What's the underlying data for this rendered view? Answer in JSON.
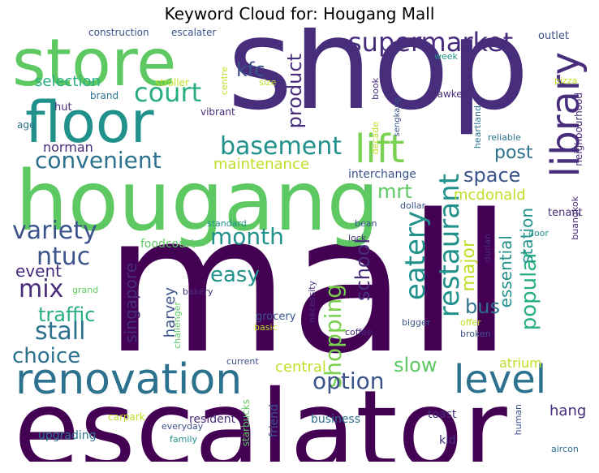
{
  "title": "Keyword Cloud for: Hougang Mall",
  "palette": {
    "purple_dark": "#440154",
    "purple": "#472d7b",
    "indigo": "#3b528b",
    "blue": "#2c728e",
    "teal": "#21918c",
    "green_teal": "#28ae80",
    "green": "#5ec962",
    "lime": "#addc30",
    "yellow": "#fde725"
  },
  "words": [
    {
      "text": "mall",
      "color": "#440154",
      "weight": 1.0
    },
    {
      "text": "shop",
      "color": "#472d7b",
      "weight": 0.68
    },
    {
      "text": "escalator",
      "color": "#440154",
      "weight": 0.62
    },
    {
      "text": "hougang",
      "color": "#5ec962",
      "weight": 0.55
    },
    {
      "text": "store",
      "color": "#5ec962",
      "weight": 0.5
    },
    {
      "text": "floor",
      "color": "#21918c",
      "weight": 0.45
    },
    {
      "text": "renovation",
      "color": "#2c728e",
      "weight": 0.3
    },
    {
      "text": "library",
      "color": "#472d7b",
      "weight": 0.28
    },
    {
      "text": "level",
      "color": "#2c728e",
      "weight": 0.26
    },
    {
      "text": "lift",
      "color": "#7ad151",
      "weight": 0.26
    },
    {
      "text": "supermarket",
      "color": "#472d7b",
      "weight": 0.22
    },
    {
      "text": "court",
      "color": "#28ae80",
      "weight": 0.2
    },
    {
      "text": "basement",
      "color": "#21918c",
      "weight": 0.2
    },
    {
      "text": "restaurant",
      "color": "#21918c",
      "weight": 0.2
    },
    {
      "text": "eatery",
      "color": "#21918c",
      "weight": 0.18
    },
    {
      "text": "convenient",
      "color": "#2c728e",
      "weight": 0.18
    },
    {
      "text": "variety",
      "color": "#3b528b",
      "weight": 0.18
    },
    {
      "text": "ntuc",
      "color": "#3b528b",
      "weight": 0.17
    },
    {
      "text": "mix",
      "color": "#472d7b",
      "weight": 0.17
    },
    {
      "text": "shopping",
      "color": "#7ad151",
      "weight": 0.17
    },
    {
      "text": "month",
      "color": "#21918c",
      "weight": 0.17
    },
    {
      "text": "stall",
      "color": "#2c728e",
      "weight": 0.17
    },
    {
      "text": "option",
      "color": "#3b528b",
      "weight": 0.16
    },
    {
      "text": "choice",
      "color": "#2c728e",
      "weight": 0.16
    },
    {
      "text": "easy",
      "color": "#21918c",
      "weight": 0.15
    },
    {
      "text": "popular",
      "color": "#28ae80",
      "weight": 0.15
    },
    {
      "text": "product",
      "color": "#472d7b",
      "weight": 0.14
    },
    {
      "text": "kfc",
      "color": "#3b528b",
      "weight": 0.14
    },
    {
      "text": "space",
      "color": "#3b528b",
      "weight": 0.14
    },
    {
      "text": "school",
      "color": "#472d7b",
      "weight": 0.14
    },
    {
      "text": "mrt",
      "color": "#5ec962",
      "weight": 0.14
    },
    {
      "text": "traffic",
      "color": "#28ae80",
      "weight": 0.14
    },
    {
      "text": "bus",
      "color": "#2c728e",
      "weight": 0.14
    },
    {
      "text": "slow",
      "color": "#5ec962",
      "weight": 0.14
    },
    {
      "text": "major",
      "color": "#bddf26",
      "weight": 0.13
    },
    {
      "text": "post",
      "color": "#2c728e",
      "weight": 0.13
    },
    {
      "text": "station",
      "color": "#21918c",
      "weight": 0.13
    },
    {
      "text": "essential",
      "color": "#21918c",
      "weight": 0.13
    },
    {
      "text": "singapore",
      "color": "#472d7b",
      "weight": 0.12
    },
    {
      "text": "event",
      "color": "#472d7b",
      "weight": 0.12
    },
    {
      "text": "harvey",
      "color": "#3b528b",
      "weight": 0.11
    },
    {
      "text": "central",
      "color": "#bddf26",
      "weight": 0.11
    },
    {
      "text": "maintenance",
      "color": "#bddf26",
      "weight": 0.1
    },
    {
      "text": "mcdonald",
      "color": "#bddf26",
      "weight": 0.1
    },
    {
      "text": "selection",
      "color": "#28ae80",
      "weight": 0.1
    },
    {
      "text": "norman",
      "color": "#472d7b",
      "weight": 0.1
    },
    {
      "text": "hang",
      "color": "#472d7b",
      "weight": 0.1
    },
    {
      "text": "atrium",
      "color": "#bddf26",
      "weight": 0.09
    },
    {
      "text": "foodcourt",
      "color": "#5ec962",
      "weight": 0.08
    },
    {
      "text": "interchange",
      "color": "#3b528b",
      "weight": 0.08
    },
    {
      "text": "upgrading",
      "color": "#2c728e",
      "weight": 0.08
    },
    {
      "text": "business",
      "color": "#2c728e",
      "weight": 0.08
    },
    {
      "text": "resident",
      "color": "#472d7b",
      "weight": 0.08
    },
    {
      "text": "construction",
      "color": "#3b528b",
      "weight": 0.07
    },
    {
      "text": "escalater",
      "color": "#3b528b",
      "weight": 0.07
    },
    {
      "text": "outlet",
      "color": "#3b528b",
      "weight": 0.07
    },
    {
      "text": "friend",
      "color": "#3b528b",
      "weight": 0.07
    },
    {
      "text": "toast",
      "color": "#472d7b",
      "weight": 0.07
    },
    {
      "text": "kid",
      "color": "#472d7b",
      "weight": 0.07
    },
    {
      "text": "tenant",
      "color": "#472d7b",
      "weight": 0.07
    },
    {
      "text": "grocery",
      "color": "#3b528b",
      "weight": 0.07
    },
    {
      "text": "hut",
      "color": "#472d7b",
      "weight": 0.06
    },
    {
      "text": "brand",
      "color": "#2c728e",
      "weight": 0.06
    },
    {
      "text": "age",
      "color": "#2c728e",
      "weight": 0.06
    },
    {
      "text": "stroller",
      "color": "#bddf26",
      "weight": 0.06
    },
    {
      "text": "vibrant",
      "color": "#472d7b",
      "weight": 0.06
    },
    {
      "text": "week",
      "color": "#21918c",
      "weight": 0.06
    },
    {
      "text": "book",
      "color": "#472d7b",
      "weight": 0.06
    },
    {
      "text": "sengkang",
      "color": "#3b528b",
      "weight": 0.06
    },
    {
      "text": "decade",
      "color": "#bddf26",
      "weight": 0.06
    },
    {
      "text": "hawker",
      "color": "#472d7b",
      "weight": 0.06
    },
    {
      "text": "heartland",
      "color": "#2c728e",
      "weight": 0.06
    },
    {
      "text": "pizza",
      "color": "#bddf26",
      "weight": 0.06
    },
    {
      "text": "neighbourhood",
      "color": "#472d7b",
      "weight": 0.06
    },
    {
      "text": "reliable",
      "color": "#2c728e",
      "weight": 0.06
    },
    {
      "text": "size",
      "color": "#bddf26",
      "weight": 0.06
    },
    {
      "text": "centre",
      "color": "#bddf26",
      "weight": 0.06
    },
    {
      "text": "standard",
      "color": "#21918c",
      "weight": 0.06
    },
    {
      "text": "bean",
      "color": "#3b528b",
      "weight": 0.06
    },
    {
      "text": "lock",
      "color": "#472d7b",
      "weight": 0.06
    },
    {
      "text": "durian",
      "color": "#472d7b",
      "weight": 0.06
    },
    {
      "text": "dollar",
      "color": "#3b528b",
      "weight": 0.06
    },
    {
      "text": "door",
      "color": "#21918c",
      "weight": 0.06
    },
    {
      "text": "buangkok",
      "color": "#472d7b",
      "weight": 0.06
    },
    {
      "text": "grand",
      "color": "#5ec962",
      "weight": 0.06
    },
    {
      "text": "bakery",
      "color": "#472d7b",
      "weight": 0.06
    },
    {
      "text": "challenger",
      "color": "#5ec962",
      "weight": 0.06
    },
    {
      "text": "basic",
      "color": "#bddf26",
      "weight": 0.06
    },
    {
      "text": "necessity",
      "color": "#472d7b",
      "weight": 0.06
    },
    {
      "text": "coffee",
      "color": "#472d7b",
      "weight": 0.06
    },
    {
      "text": "bigger",
      "color": "#3b528b",
      "weight": 0.06
    },
    {
      "text": "offer",
      "color": "#bddf26",
      "weight": 0.06
    },
    {
      "text": "broken",
      "color": "#3b528b",
      "weight": 0.06
    },
    {
      "text": "current",
      "color": "#3b528b",
      "weight": 0.06
    },
    {
      "text": "carpark",
      "color": "#bddf26",
      "weight": 0.06
    },
    {
      "text": "everyday",
      "color": "#3b528b",
      "weight": 0.06
    },
    {
      "text": "family",
      "color": "#21918c",
      "weight": 0.06
    },
    {
      "text": "starbucks",
      "color": "#5ec962",
      "weight": 0.06
    },
    {
      "text": "human",
      "color": "#3b528b",
      "weight": 0.06
    },
    {
      "text": "aircon",
      "color": "#2c728e",
      "weight": 0.06
    }
  ]
}
